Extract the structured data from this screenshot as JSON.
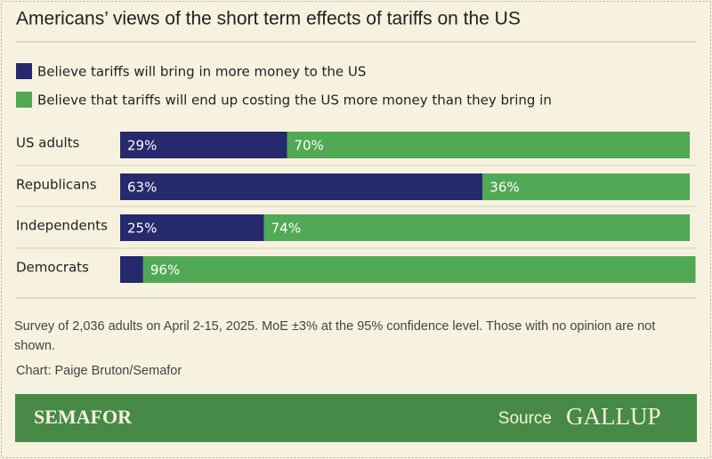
{
  "chart_data": {
    "type": "stacked-bar-horizontal",
    "title": "Americans’ views of the short term effects of tariffs on the US",
    "categories": [
      "US adults",
      "Republicans",
      "Independents",
      "Democrats"
    ],
    "series": [
      {
        "name": "Believe tariffs will bring in more money to the US",
        "color": "#27296d",
        "values": [
          29,
          63,
          25,
          4
        ],
        "value_labels": [
          "29%",
          "63%",
          "25%",
          null
        ]
      },
      {
        "name": "Believe that tariffs will end up costing the US more money than they bring in",
        "color": "#52a955",
        "values": [
          70,
          36,
          74,
          96
        ],
        "value_labels": [
          "70%",
          "36%",
          "74%",
          "96%"
        ]
      }
    ],
    "xlim": [
      0,
      100
    ],
    "note": "Survey of 2,036 adults on April 2-15, 2025. MoE ±3% at the 95% confidence level. Those with no opinion are not shown.",
    "credit": "Chart: Paige Bruton/Semafor",
    "brand": "SEMAFOR",
    "source_label": "Source",
    "source": "GALLUP"
  }
}
